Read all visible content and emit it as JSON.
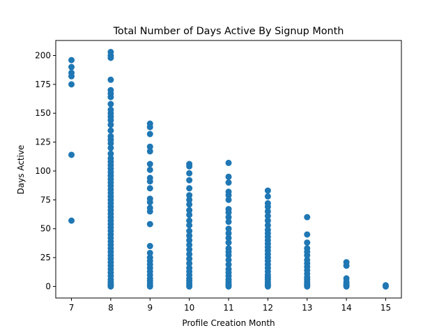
{
  "chart_data": {
    "type": "scatter",
    "title": "Total Number of Days Active By Signup Month",
    "xlabel": "Profile Creation Month",
    "ylabel": "Days Active",
    "xlim": [
      6.6,
      15.4
    ],
    "ylim": [
      -10,
      213
    ],
    "xticks": [
      7,
      8,
      9,
      10,
      11,
      12,
      13,
      14,
      15
    ],
    "yticks": [
      0,
      25,
      50,
      75,
      100,
      125,
      150,
      175,
      200
    ],
    "grid": false,
    "legend": "none",
    "marker_color": "#1f77b4",
    "series": [
      {
        "points": {
          "7": [
            196,
            190,
            185,
            182,
            175,
            114,
            57
          ],
          "8": [
            203,
            200,
            198,
            179,
            170,
            167,
            164,
            158,
            153,
            150,
            147,
            144,
            140,
            135,
            130,
            127,
            124,
            120,
            115,
            111,
            108,
            105,
            102,
            99,
            96,
            93,
            90,
            87,
            84,
            81,
            78,
            75,
            72,
            69,
            66,
            63,
            60,
            57,
            54,
            51,
            48,
            45,
            42,
            39,
            36,
            33,
            30,
            27,
            24,
            21,
            18,
            15,
            12,
            9,
            6,
            4,
            2,
            1,
            0
          ],
          "9": [
            141,
            138,
            132,
            121,
            117,
            106,
            101,
            94,
            91,
            85,
            76,
            73,
            68,
            65,
            54,
            35,
            29,
            25,
            22,
            19,
            16,
            13,
            10,
            7,
            5,
            3,
            1,
            0
          ],
          "10": [
            106,
            104,
            98,
            92,
            85,
            79,
            75,
            71,
            66,
            62,
            57,
            53,
            48,
            44,
            40,
            36,
            32,
            28,
            24,
            20,
            16,
            13,
            10,
            7,
            5,
            3,
            1,
            0
          ],
          "11": [
            107,
            95,
            90,
            82,
            79,
            75,
            67,
            64,
            60,
            56,
            50,
            46,
            42,
            38,
            33,
            30,
            27,
            23,
            19,
            15,
            12,
            9,
            6,
            4,
            2,
            1,
            0
          ],
          "12": [
            83,
            78,
            72,
            69,
            65,
            61,
            57,
            53,
            49,
            46,
            43,
            40,
            37,
            34,
            31,
            28,
            25,
            22,
            19,
            16,
            13,
            10,
            8,
            6,
            4,
            2,
            1,
            0
          ],
          "13": [
            60,
            45,
            38,
            33,
            30,
            27,
            23,
            20,
            17,
            14,
            11,
            8,
            6,
            4,
            2,
            1,
            0
          ],
          "14": [
            21,
            18,
            7,
            4,
            2,
            1,
            0
          ],
          "15": [
            1,
            0
          ]
        }
      }
    ]
  }
}
